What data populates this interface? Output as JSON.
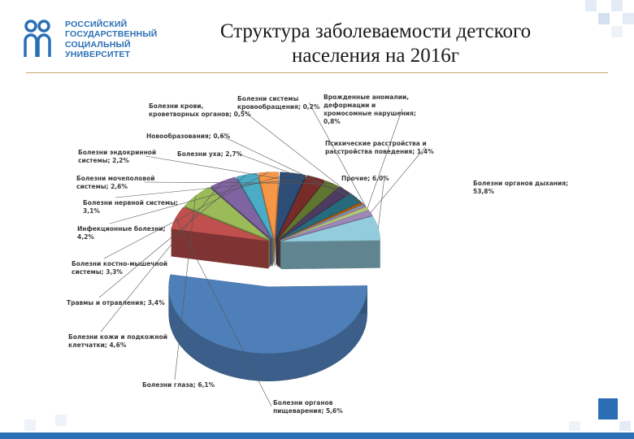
{
  "logo": {
    "lines": [
      "РОССИЙСКИЙ",
      "ГОСУДАРСТВЕННЫЙ",
      "СОЦИАЛЬНЫЙ",
      "УНИВЕРСИТЕТ"
    ],
    "color": "#2a6fb5"
  },
  "title_line1": "Структура заболеваемости детского",
  "title_line2": "населения на 2016г",
  "chart_data": {
    "type": "pie",
    "style": "3d-exploded",
    "unit": "%",
    "slices": [
      {
        "label": [
          "Болезни органов дыхания;",
          "53,8%"
        ],
        "value": 53.8,
        "color": "#4f7fb8"
      },
      {
        "label": [
          "Болезни органов",
          "пищеварения; 5,6%"
        ],
        "value": 5.6,
        "color": "#c0504d"
      },
      {
        "label": [
          "Болезни глаза; 6,1%"
        ],
        "value": 6.1,
        "color": "#9bbb59"
      },
      {
        "label": [
          "Болезни кожи и подкожной",
          "клетчатки; 4,6%"
        ],
        "value": 4.6,
        "color": "#8064a2"
      },
      {
        "label": [
          "Травмы и отравления; 3,4%"
        ],
        "value": 3.4,
        "color": "#4bacc6"
      },
      {
        "label": [
          "Болезни костно-мышечной",
          "системы; 3,3%"
        ],
        "value": 3.3,
        "color": "#f79646"
      },
      {
        "label": [
          "Инфекционные болезни;",
          "4,2%"
        ],
        "value": 4.2,
        "color": "#2c4d75"
      },
      {
        "label": [
          "Болезни нервной системы;",
          "3,1%"
        ],
        "value": 3.1,
        "color": "#772c2a"
      },
      {
        "label": [
          "Болезни мочеполовой",
          "системы; 2,6%"
        ],
        "value": 2.6,
        "color": "#5f7530"
      },
      {
        "label": [
          "Болезни эндокринной",
          "системы; 2,2%"
        ],
        "value": 2.2,
        "color": "#4d3b62"
      },
      {
        "label": [
          "Болезни уха; 2,7%"
        ],
        "value": 2.7,
        "color": "#276a7c"
      },
      {
        "label": [
          "Новообразования; 0,6%"
        ],
        "value": 0.6,
        "color": "#b65708"
      },
      {
        "label": [
          "Болезни крови,",
          "кроветворных органов; 0,5%"
        ],
        "value": 0.5,
        "color": "#729aca"
      },
      {
        "label": [
          "Болезни системы",
          "кровообращения; 0,2%"
        ],
        "value": 0.2,
        "color": "#cd7371"
      },
      {
        "label": [
          "Врожденные аномалии,",
          "деформации и",
          "хромосомные нарушения;",
          "0,8%"
        ],
        "value": 0.8,
        "color": "#afc97a"
      },
      {
        "label": [
          "Психические расстройства и",
          "расстройства поведения; 1,4%"
        ],
        "value": 1.4,
        "color": "#9d87b8"
      },
      {
        "label": [
          "Прочие; 6,0%"
        ],
        "value": 6.0,
        "color": "#93cddd"
      }
    ]
  }
}
